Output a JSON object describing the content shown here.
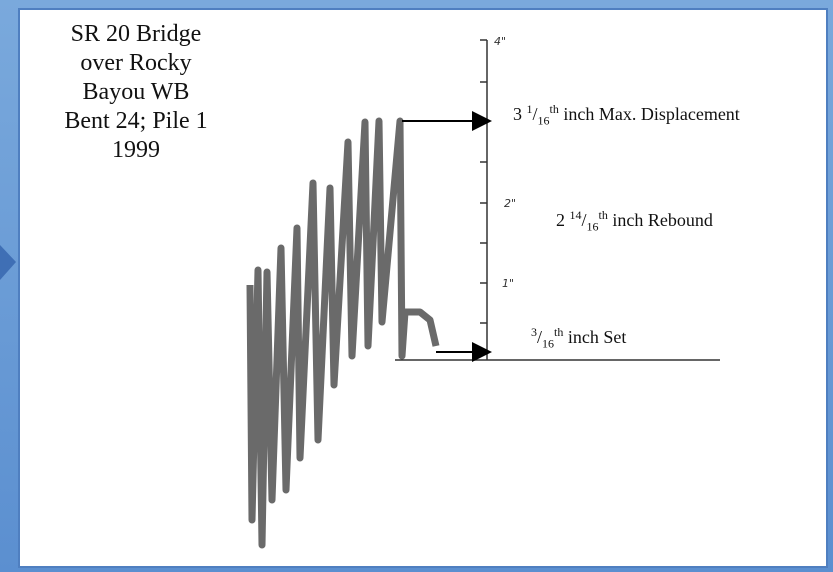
{
  "caption": {
    "lines": [
      "SR 20 Bridge",
      "over Rocky",
      "Bayou WB",
      "Bent 24; Pile 1",
      "1999"
    ]
  },
  "scale": {
    "labels": [
      "4\"",
      "2\"",
      "1\""
    ]
  },
  "annotations": [
    {
      "lead": "3 ",
      "numerator": "1",
      "slash": "/",
      "denominator": "16",
      "suffix": "th",
      "text": " inch Max. Displacement"
    },
    {
      "lead": "2 ",
      "numerator": "14",
      "slash": "/",
      "denominator": "16",
      "suffix": "th",
      "text": " inch Rebound"
    },
    {
      "numerator": "3",
      "slash": "/",
      "denominator": "16",
      "suffix": "th",
      "text": " inch Set"
    }
  ]
}
